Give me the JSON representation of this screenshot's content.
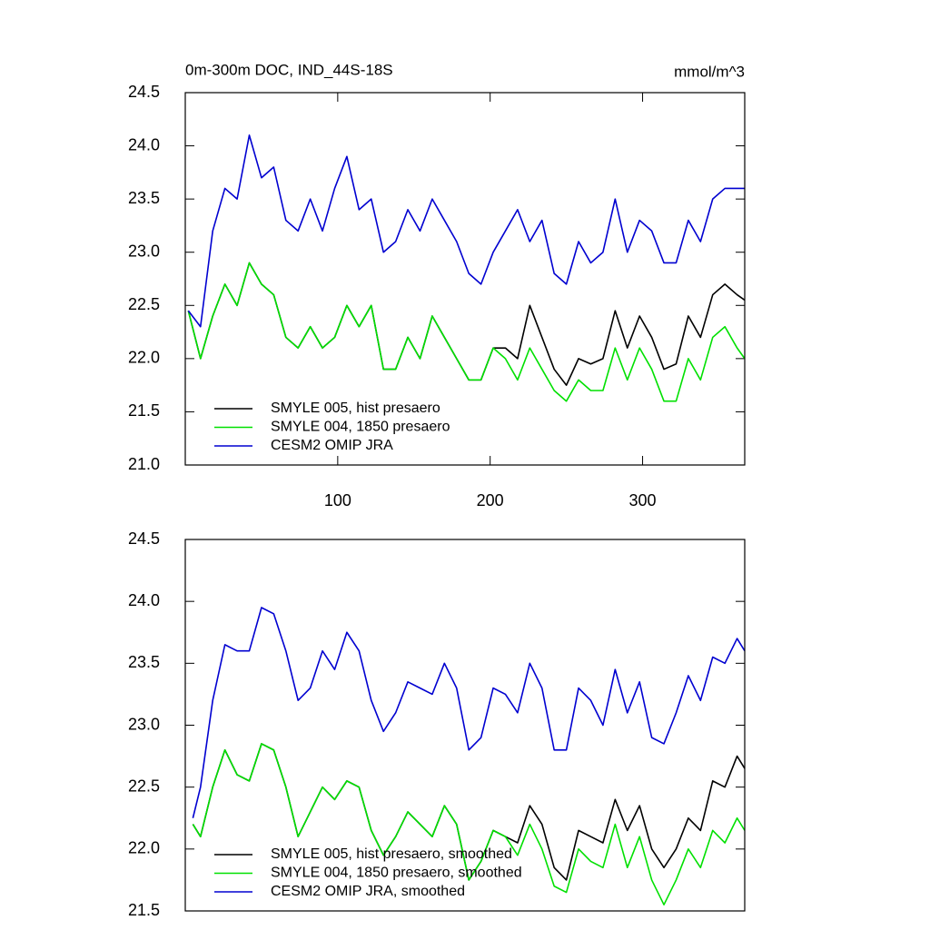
{
  "chart_data": [
    {
      "type": "line",
      "title": "0m-300m DOC, IND_44S-18S",
      "units": "mmol/m^3",
      "x": [
        2,
        10,
        18,
        26,
        34,
        42,
        50,
        58,
        66,
        74,
        82,
        90,
        98,
        106,
        114,
        122,
        130,
        138,
        146,
        154,
        162,
        170,
        178,
        186,
        194,
        202,
        210,
        218,
        226,
        234,
        242,
        250,
        258,
        266,
        274,
        282,
        290,
        298,
        306,
        314,
        322,
        330,
        338,
        346,
        354,
        362,
        367
      ],
      "xlim": [
        0,
        367
      ],
      "xticks": [
        100,
        200,
        300
      ],
      "ylim": [
        21,
        24.5
      ],
      "yticks": [
        {
          "value": 21,
          "label": "21.0"
        },
        21.5,
        {
          "value": 22,
          "label": "22.0"
        },
        22.5,
        {
          "value": 23,
          "label": "23.0"
        },
        23.5,
        {
          "value": 24,
          "label": "24.0"
        },
        24.5
      ],
      "legend": "bottom-left",
      "series": [
        {
          "name": "SMYLE 005, hist presaero",
          "color": "#000000",
          "values": [
            22.45,
            22.0,
            22.4,
            22.7,
            22.5,
            22.9,
            22.7,
            22.6,
            22.2,
            22.1,
            22.3,
            22.1,
            22.2,
            22.5,
            22.3,
            22.5,
            21.9,
            21.9,
            22.2,
            22.0,
            22.4,
            22.2,
            22.0,
            21.8,
            21.8,
            22.1,
            22.1,
            22.0,
            22.5,
            22.2,
            21.9,
            21.75,
            22.0,
            21.95,
            22.0,
            22.45,
            22.1,
            22.4,
            22.2,
            21.9,
            21.95,
            22.4,
            22.2,
            22.6,
            22.7,
            22.6,
            22.55
          ]
        },
        {
          "name": "SMYLE 004, 1850 presaero",
          "color": "#00e000",
          "values": [
            22.45,
            22.0,
            22.4,
            22.7,
            22.5,
            22.9,
            22.7,
            22.6,
            22.2,
            22.1,
            22.3,
            22.1,
            22.2,
            22.5,
            22.3,
            22.5,
            21.9,
            21.9,
            22.2,
            22.0,
            22.4,
            22.2,
            22.0,
            21.8,
            21.8,
            22.1,
            22.0,
            21.8,
            22.1,
            21.9,
            21.7,
            21.6,
            21.8,
            21.7,
            21.7,
            22.1,
            21.8,
            22.1,
            21.9,
            21.6,
            21.6,
            22.0,
            21.8,
            22.2,
            22.3,
            22.1,
            22.0
          ]
        },
        {
          "name": "CESM2 OMIP JRA",
          "color": "#0000d0",
          "values": [
            22.45,
            22.3,
            23.2,
            23.6,
            23.5,
            24.1,
            23.7,
            23.8,
            23.3,
            23.2,
            23.5,
            23.2,
            23.6,
            23.9,
            23.4,
            23.5,
            23.0,
            23.1,
            23.4,
            23.2,
            23.5,
            23.3,
            23.1,
            22.8,
            22.7,
            23.0,
            23.2,
            23.4,
            23.1,
            23.3,
            22.8,
            22.7,
            23.1,
            22.9,
            23.0,
            23.5,
            23.0,
            23.3,
            23.2,
            22.9,
            22.9,
            23.3,
            23.1,
            23.5,
            23.6,
            23.6,
            23.6
          ]
        }
      ]
    },
    {
      "type": "line",
      "x": [
        5,
        10,
        18,
        26,
        34,
        42,
        50,
        58,
        66,
        74,
        82,
        90,
        98,
        106,
        114,
        122,
        130,
        138,
        146,
        154,
        162,
        170,
        178,
        186,
        194,
        202,
        210,
        218,
        226,
        234,
        242,
        250,
        258,
        266,
        274,
        282,
        290,
        298,
        306,
        314,
        322,
        330,
        338,
        346,
        354,
        362,
        367
      ],
      "xlim": [
        0,
        367
      ],
      "ylim": [
        21.5,
        24.5
      ],
      "yticks": [
        21.5,
        {
          "value": 22,
          "label": "22.0"
        },
        22.5,
        {
          "value": 23,
          "label": "23.0"
        },
        23.5,
        {
          "value": 24,
          "label": "24.0"
        },
        24.5
      ],
      "legend": "bottom-left",
      "series": [
        {
          "name": "SMYLE 005, hist presaero, smoothed",
          "color": "#000000",
          "values": [
            22.2,
            22.1,
            22.5,
            22.8,
            22.6,
            22.55,
            22.85,
            22.8,
            22.5,
            22.1,
            22.3,
            22.5,
            22.4,
            22.55,
            22.5,
            22.15,
            21.95,
            22.1,
            22.3,
            22.2,
            22.1,
            22.35,
            22.2,
            21.75,
            21.9,
            22.15,
            22.1,
            22.05,
            22.35,
            22.2,
            21.85,
            21.75,
            22.15,
            22.1,
            22.05,
            22.4,
            22.15,
            22.35,
            22.0,
            21.85,
            22.0,
            22.25,
            22.15,
            22.55,
            22.5,
            22.75,
            22.65
          ]
        },
        {
          "name": "SMYLE 004, 1850 presaero, smoothed",
          "color": "#00e000",
          "values": [
            22.2,
            22.1,
            22.5,
            22.8,
            22.6,
            22.55,
            22.85,
            22.8,
            22.5,
            22.1,
            22.3,
            22.5,
            22.4,
            22.55,
            22.5,
            22.15,
            21.95,
            22.1,
            22.3,
            22.2,
            22.1,
            22.35,
            22.2,
            21.75,
            21.9,
            22.15,
            22.1,
            21.95,
            22.2,
            22.0,
            21.7,
            21.65,
            22.0,
            21.9,
            21.85,
            22.2,
            21.85,
            22.1,
            21.75,
            21.55,
            21.75,
            22.0,
            21.85,
            22.15,
            22.05,
            22.25,
            22.15
          ]
        },
        {
          "name": "CESM2 OMIP JRA, smoothed",
          "color": "#0000d0",
          "values": [
            22.25,
            22.5,
            23.2,
            23.65,
            23.6,
            23.6,
            23.95,
            23.9,
            23.6,
            23.2,
            23.3,
            23.6,
            23.45,
            23.75,
            23.6,
            23.2,
            22.95,
            23.1,
            23.35,
            23.3,
            23.25,
            23.5,
            23.3,
            22.8,
            22.9,
            23.3,
            23.25,
            23.1,
            23.5,
            23.3,
            22.8,
            22.8,
            23.3,
            23.2,
            23.0,
            23.45,
            23.1,
            23.35,
            22.9,
            22.85,
            23.1,
            23.4,
            23.2,
            23.55,
            23.5,
            23.7,
            23.6
          ]
        }
      ]
    }
  ]
}
